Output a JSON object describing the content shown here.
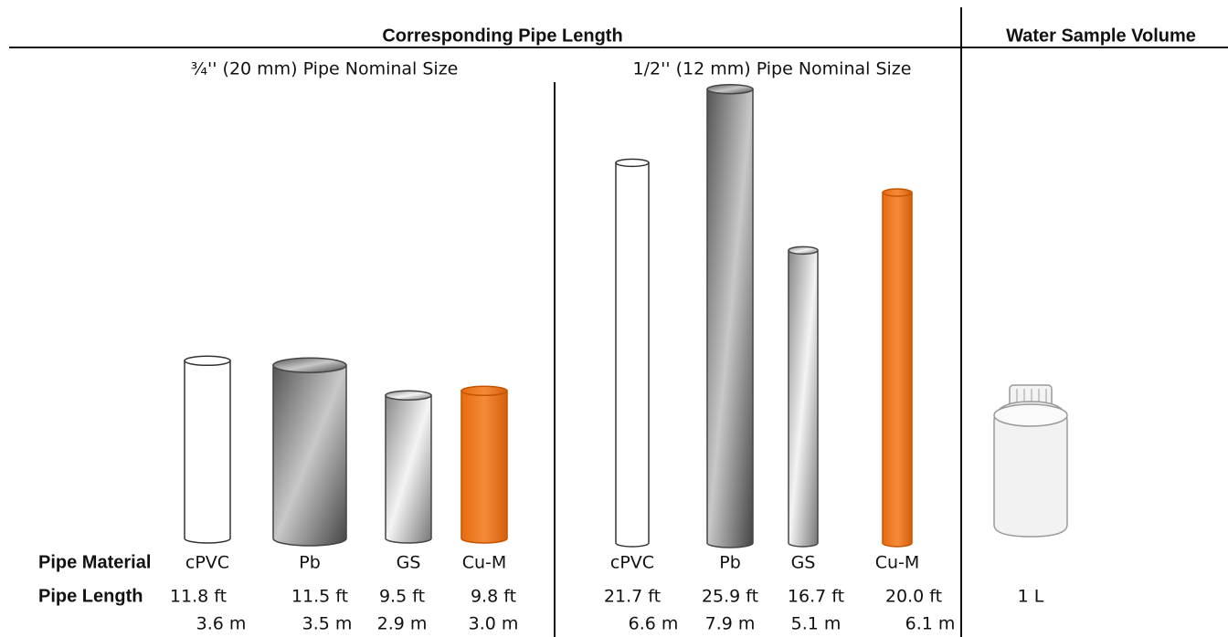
{
  "header": {
    "title": "Corresponding Pipe Length",
    "volume_title": "Water Sample Volume"
  },
  "row_labels": {
    "material": "Pipe Material",
    "length": "Pipe Length"
  },
  "groups": [
    {
      "title": "¾'' (20 mm) Pipe Nominal Size",
      "pipes": [
        {
          "material": "cPVC",
          "ft": 11.8,
          "ft_label": "11.8 ft",
          "m_label": "3.6 m"
        },
        {
          "material": "Pb",
          "ft": 11.5,
          "ft_label": "11.5 ft",
          "m_label": "3.5 m"
        },
        {
          "material": "GS",
          "ft": 9.5,
          "ft_label": "9.5 ft",
          "m_label": "2.9 m"
        },
        {
          "material": "Cu-M",
          "ft": 9.8,
          "ft_label": "9.8 ft",
          "m_label": "3.0 m"
        }
      ]
    },
    {
      "title": "1/2'' (12 mm) Pipe Nominal Size",
      "pipes": [
        {
          "material": "cPVC",
          "ft": 21.7,
          "ft_label": "21.7 ft",
          "m_label": "6.6 m"
        },
        {
          "material": "Pb",
          "ft": 25.9,
          "ft_label": "25.9 ft",
          "m_label": "7.9 m"
        },
        {
          "material": "GS",
          "ft": 16.7,
          "ft_label": "16.7 ft",
          "m_label": "5.1 m"
        },
        {
          "material": "Cu-M",
          "ft": 20.0,
          "ft_label": "20.0 ft",
          "m_label": "6.1 m"
        }
      ]
    }
  ],
  "volume": "1 L"
}
